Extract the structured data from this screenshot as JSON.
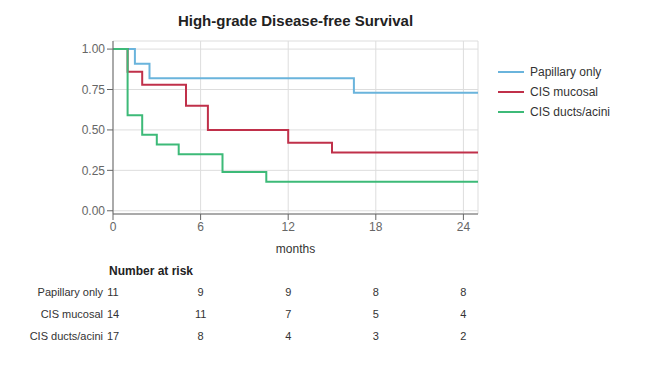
{
  "chart_data": {
    "type": "line",
    "title": "High-grade Disease-free Survival",
    "xlabel": "months",
    "xlim": [
      0,
      25
    ],
    "ylim": [
      -0.02,
      1.05
    ],
    "xticks": [
      0,
      6,
      12,
      18,
      24
    ],
    "yticks": [
      {
        "value": 0.0,
        "label": "0.00"
      },
      {
        "value": 0.25,
        "label": "0.25"
      },
      {
        "value": 0.5,
        "label": "0.50"
      },
      {
        "value": 0.75,
        "label": "0.75"
      },
      {
        "value": 1.0,
        "label": "1.00"
      }
    ],
    "grid": true,
    "legend": "right",
    "line_style": "step",
    "series": [
      {
        "name": "Papillary only",
        "color": "#6ab4dc",
        "x": [
          0,
          1.5,
          2.5,
          3.5,
          4.5,
          5.5,
          16.5,
          25
        ],
        "values": [
          1.0,
          0.91,
          0.82,
          0.82,
          0.82,
          0.82,
          0.73,
          0.73
        ]
      },
      {
        "name": "CIS mucosal",
        "color": "#c0304a",
        "x": [
          0,
          1.0,
          2.0,
          3.5,
          5.0,
          6.5,
          8.0,
          10.0,
          12.0,
          15.0,
          25
        ],
        "values": [
          1.0,
          0.86,
          0.78,
          0.78,
          0.65,
          0.5,
          0.5,
          0.5,
          0.42,
          0.36,
          0.36
        ]
      },
      {
        "name": "CIS ducts/acini",
        "color": "#3dba78",
        "x": [
          0,
          1.0,
          2.0,
          3.0,
          4.5,
          6.0,
          7.5,
          9.0,
          10.5,
          12.0,
          14.0,
          25
        ],
        "values": [
          1.0,
          0.59,
          0.47,
          0.41,
          0.35,
          0.35,
          0.24,
          0.24,
          0.18,
          0.18,
          0.18,
          0.18
        ]
      }
    ],
    "risk_table": {
      "label": "Number at risk",
      "times": [
        0,
        6,
        12,
        18,
        24
      ],
      "rows": [
        {
          "name": "Papillary only",
          "values": [
            11,
            9,
            9,
            8,
            8
          ]
        },
        {
          "name": "CIS mucosal",
          "values": [
            14,
            11,
            7,
            5,
            4
          ]
        },
        {
          "name": "CIS ducts/acini",
          "values": [
            17,
            8,
            4,
            3,
            2
          ]
        }
      ]
    }
  }
}
